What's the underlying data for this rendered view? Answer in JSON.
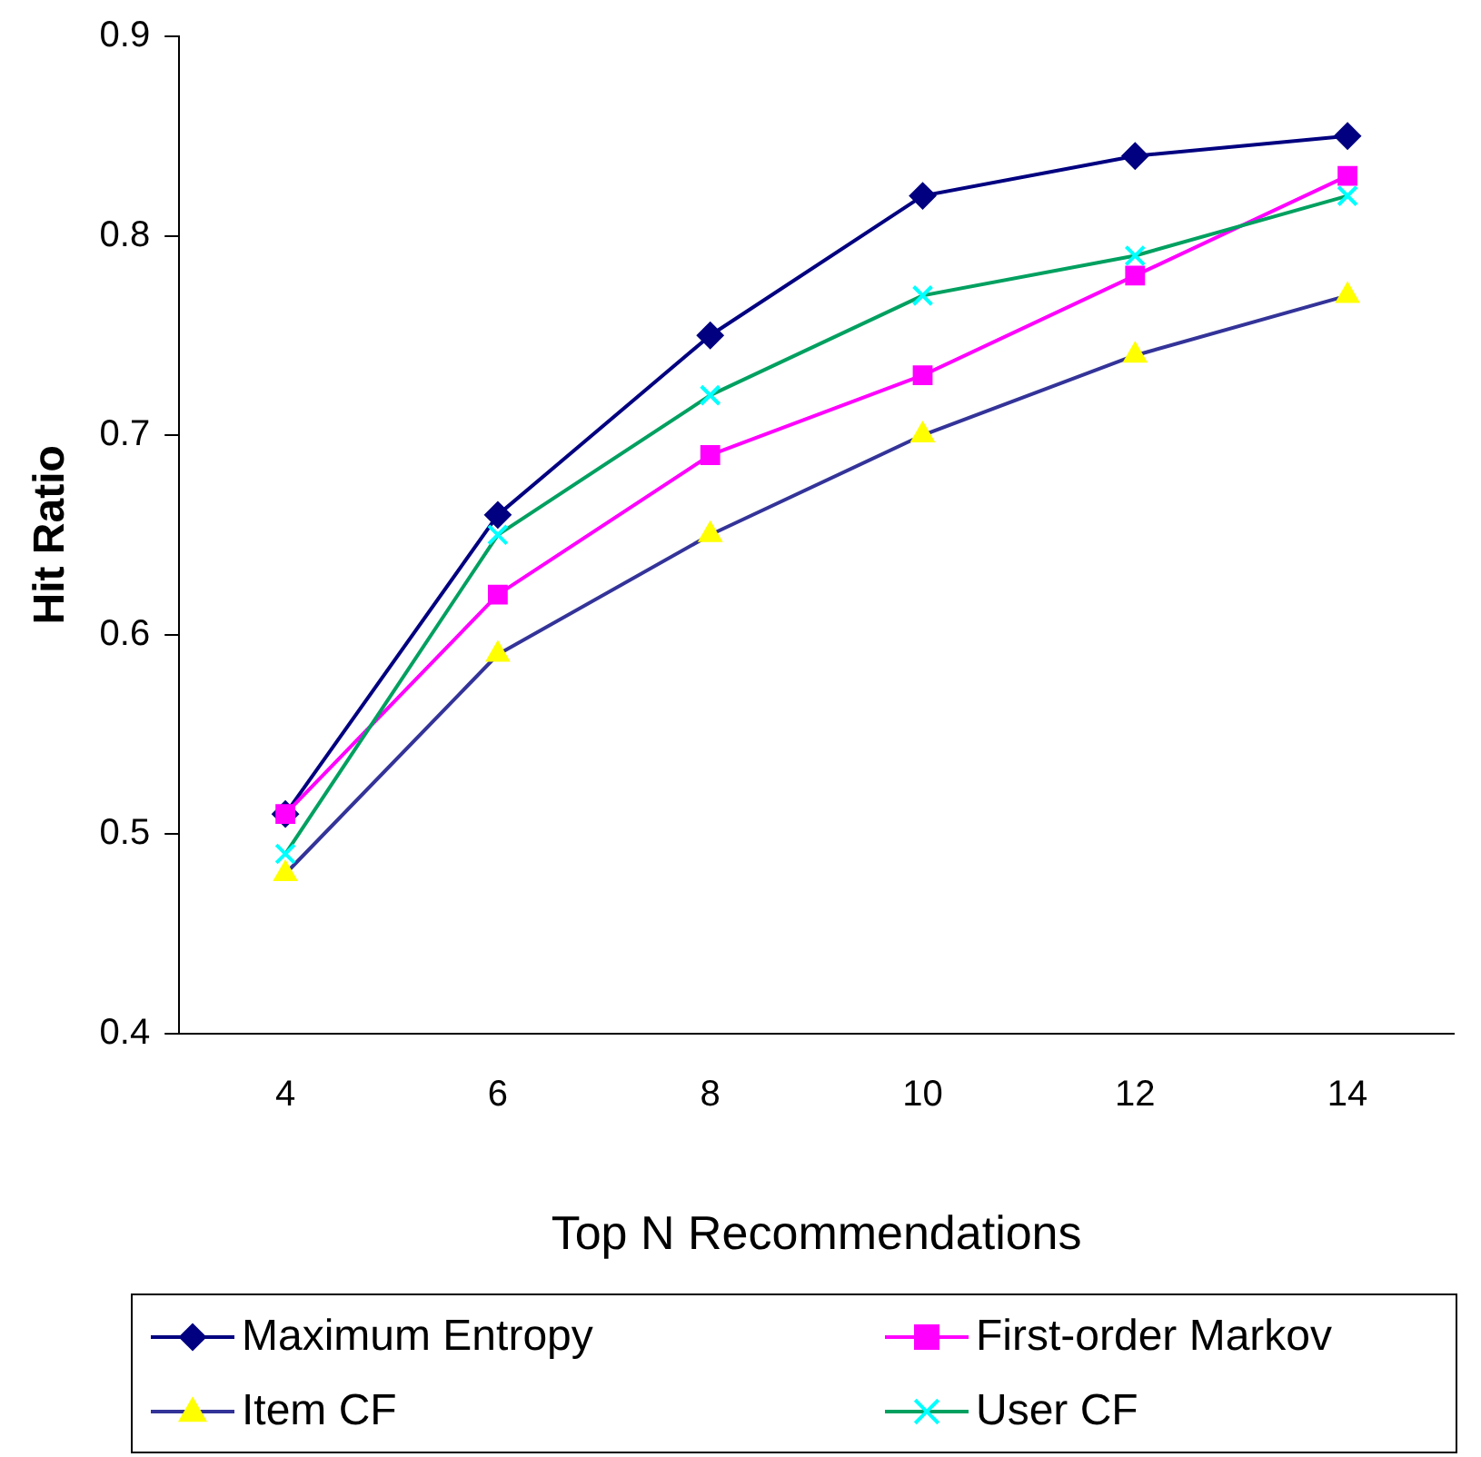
{
  "chart_data": {
    "type": "line",
    "xlabel": "Top N Recommendations",
    "ylabel": "Hit Ratio",
    "categories": [
      "4",
      "6",
      "8",
      "10",
      "12",
      "14"
    ],
    "ylim": [
      0.4,
      0.9
    ],
    "yticks": [
      0.4,
      0.5,
      0.6,
      0.7,
      0.8,
      0.9
    ],
    "grid": false,
    "legend": "bottom",
    "line_style": "solid",
    "series": [
      {
        "name": "Maximum Entropy",
        "color": "#000080",
        "marker": "diamond",
        "values": [
          0.51,
          0.66,
          0.75,
          0.82,
          0.84,
          0.85
        ]
      },
      {
        "name": "First-order Markov",
        "color": "#ff00ff",
        "marker": "square",
        "values": [
          0.51,
          0.62,
          0.69,
          0.73,
          0.78,
          0.83
        ]
      },
      {
        "name": "Item CF",
        "color": "#333399",
        "colors": [
          "#ffff00",
          "#ffff00",
          "#ffff00",
          "#ffff00",
          "#ffff00",
          "#ffff00"
        ],
        "marker": "triangle",
        "values": [
          0.48,
          0.59,
          0.65,
          0.7,
          0.74,
          0.77
        ]
      },
      {
        "name": "User CF",
        "color": "#00a060",
        "colors": [
          "#00ffff",
          "#00ffff",
          "#00ffff",
          "#00ffff",
          "#00ffff",
          "#00ffff"
        ],
        "marker": "cross",
        "values": [
          0.49,
          0.65,
          0.72,
          0.77,
          0.79,
          0.82
        ]
      }
    ]
  }
}
